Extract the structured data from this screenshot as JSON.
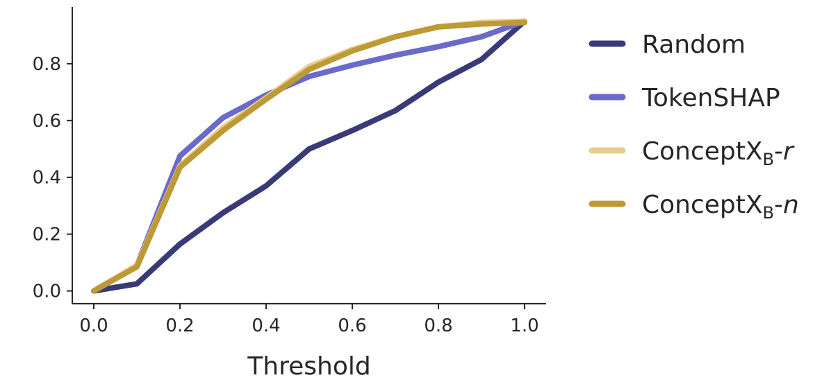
{
  "chart_data": {
    "type": "line",
    "title": "",
    "xlabel": "Threshold",
    "ylabel": "",
    "xlim": [
      -0.05,
      1.05
    ],
    "ylim": [
      -0.045,
      1.0
    ],
    "xticks": [
      "0.0",
      "0.2",
      "0.4",
      "0.6",
      "0.8",
      "1.0"
    ],
    "yticks": [
      "0.0",
      "0.2",
      "0.4",
      "0.6",
      "0.8"
    ],
    "grid": false,
    "legend_position": "right",
    "x": [
      0.0,
      0.1,
      0.2,
      0.3,
      0.4,
      0.5,
      0.6,
      0.7,
      0.8,
      0.9,
      1.0
    ],
    "series": [
      {
        "name": "Random",
        "color": "#3a3a78",
        "values": [
          0.0,
          0.025,
          0.165,
          0.275,
          0.37,
          0.5,
          0.565,
          0.635,
          0.735,
          0.815,
          0.95
        ]
      },
      {
        "name": "TokenSHAP",
        "color": "#6a6acb",
        "values": [
          0.0,
          0.09,
          0.475,
          0.61,
          0.69,
          0.755,
          0.795,
          0.83,
          0.86,
          0.895,
          0.95
        ]
      },
      {
        "name": "ConceptX",
        "name_subscript": "B",
        "name_suffix": "r",
        "color": "#e8cb8d",
        "values": [
          0.0,
          0.09,
          0.44,
          0.575,
          0.68,
          0.79,
          0.85,
          0.895,
          0.93,
          0.945,
          0.95
        ]
      },
      {
        "name": "ConceptX",
        "name_subscript": "B",
        "name_suffix": "n",
        "color": "#bc9a35",
        "values": [
          0.0,
          0.085,
          0.435,
          0.565,
          0.675,
          0.78,
          0.845,
          0.895,
          0.93,
          0.94,
          0.945
        ]
      }
    ]
  }
}
